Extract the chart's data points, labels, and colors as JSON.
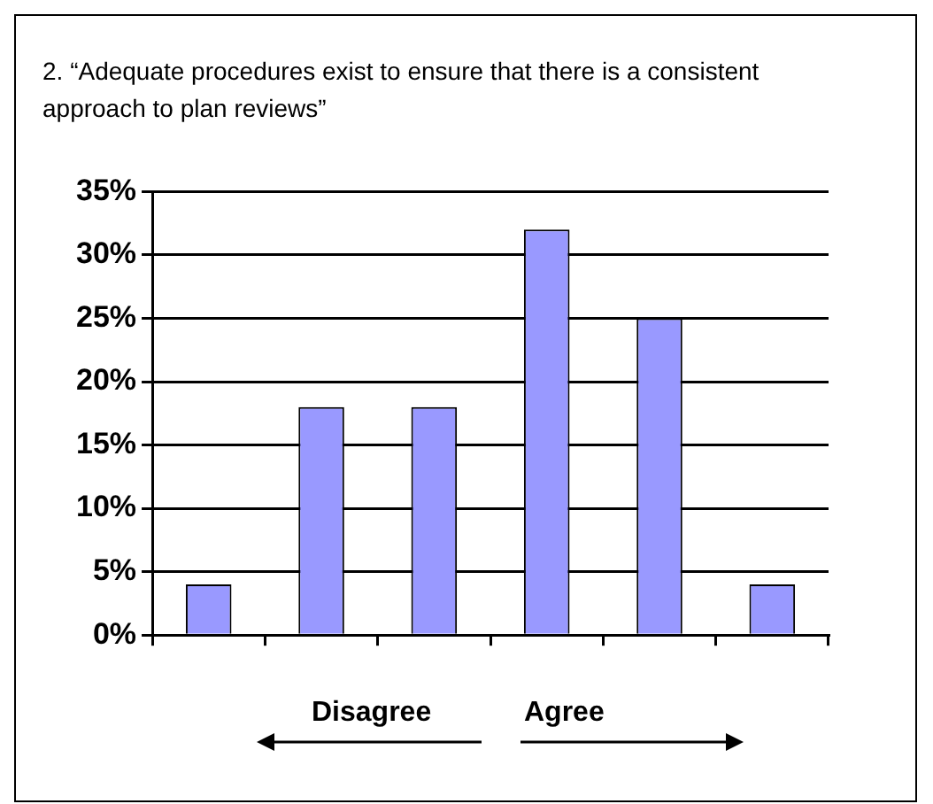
{
  "chart_data": {
    "type": "bar",
    "title": "2. “Adequate procedures exist to ensure that there is a consistent approach to plan reviews”",
    "categories": [
      null,
      null,
      null,
      null,
      null,
      null
    ],
    "values": [
      4,
      18,
      18,
      32,
      25,
      4
    ],
    "color": "#9999ff",
    "ylim": [
      0,
      35
    ],
    "yticks": [
      {
        "value": 0,
        "label": "0%"
      },
      {
        "value": 5,
        "label": "5%"
      },
      {
        "value": 10,
        "label": "10%"
      },
      {
        "value": 15,
        "label": "15%"
      },
      {
        "value": 20,
        "label": "20%"
      },
      {
        "value": 25,
        "label": "25%"
      },
      {
        "value": 30,
        "label": "30%"
      },
      {
        "value": 35,
        "label": "35%"
      }
    ],
    "grid": "y",
    "annotations": [
      "Disagree",
      "Agree"
    ]
  }
}
